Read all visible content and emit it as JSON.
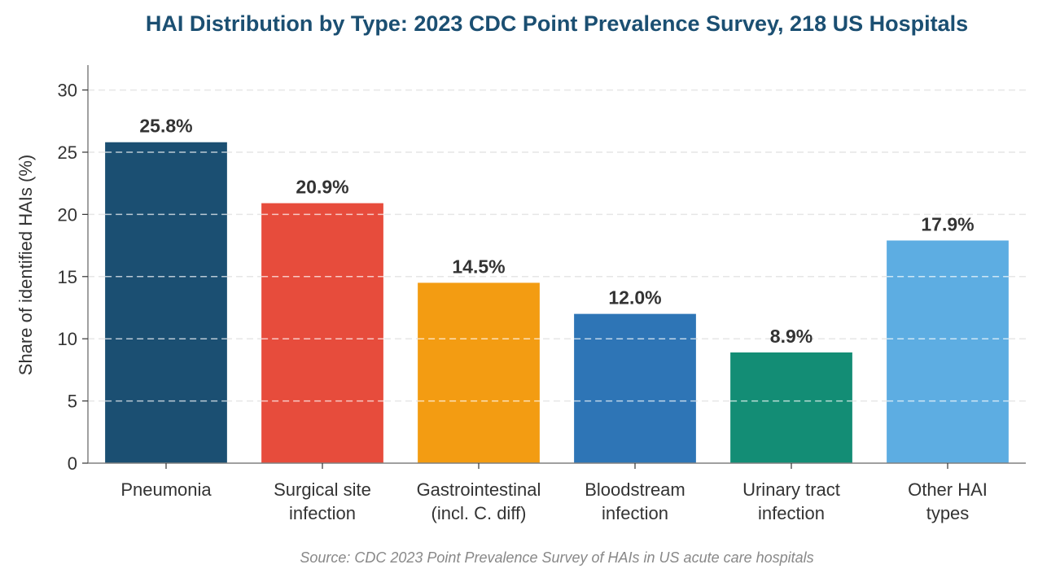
{
  "chart_data": {
    "type": "bar",
    "title": "HAI Distribution by Type: 2023 CDC Point Prevalence Survey, 218 US Hospitals",
    "ylabel": "Share of identified HAIs (%)",
    "xlabel": "",
    "ylim": [
      0,
      32
    ],
    "yticks": [
      0,
      5,
      10,
      15,
      20,
      25,
      30
    ],
    "grid": "horizontal dashed",
    "categories": [
      [
        "Pneumonia"
      ],
      [
        "Surgical site",
        "infection"
      ],
      [
        "Gastrointestinal",
        "(incl. C. diff)"
      ],
      [
        "Bloodstream",
        "infection"
      ],
      [
        "Urinary tract",
        "infection"
      ],
      [
        "Other HAI",
        "types"
      ]
    ],
    "values": [
      25.8,
      20.9,
      14.5,
      12.0,
      8.9,
      17.9
    ],
    "value_labels": [
      "25.8%",
      "20.9%",
      "14.5%",
      "12.0%",
      "8.9%",
      "17.9%"
    ],
    "colors": [
      "#1b4f72",
      "#e74c3c",
      "#f39c12",
      "#2e75b6",
      "#138d75",
      "#5dade2"
    ],
    "source": "Source: CDC 2023 Point Prevalence Survey of HAIs in US acute care hospitals"
  }
}
